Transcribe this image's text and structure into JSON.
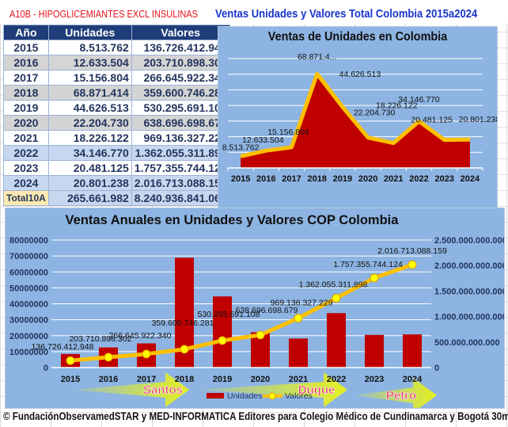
{
  "header": {
    "category_label": "A10B - HIPOGLICEMIANTES EXCL INSULINAS",
    "title": "Ventas Unidades y Valores Total Colombia 2015a2024"
  },
  "table": {
    "columns": [
      "Año",
      "Unidades",
      "Valores"
    ],
    "rows": [
      {
        "year": "2015",
        "units": "8.513.762",
        "values": "136.726.412.948"
      },
      {
        "year": "2016",
        "units": "12.633.504",
        "values": "203.710.898.302"
      },
      {
        "year": "2017",
        "units": "15.156.804",
        "values": "266.645.922.340"
      },
      {
        "year": "2018",
        "units": "68.871.414",
        "values": "359.600.746.281"
      },
      {
        "year": "2019",
        "units": "44.626.513",
        "values": "530.295.691.108"
      },
      {
        "year": "2020",
        "units": "22.204.730",
        "values": "638.696.698.679"
      },
      {
        "year": "2021",
        "units": "18.226.122",
        "values": "969.136.327.229"
      },
      {
        "year": "2022",
        "units": "34.146.770",
        "values": "1.362.055.311.898"
      },
      {
        "year": "2023",
        "units": "20.481.125",
        "values": "1.757.355.744.124"
      },
      {
        "year": "2024",
        "units": "20.801.238",
        "values": "2.016.713.088.159"
      }
    ],
    "total": {
      "label": "Total10A",
      "units": "265.661.982",
      "values": "8.240.936.841.068"
    }
  },
  "colors": {
    "panel_bg": "#8db4e2",
    "bar_red": "#c00000",
    "line_gold": "#ffc000",
    "marker_yellow": "#ffff00",
    "header_navy": "#1f3d7a",
    "arrow_yellow": "#e5f020",
    "president_label": "#e8306a"
  },
  "chart_data": [
    {
      "type": "area",
      "title": "Ventas de Unidades en Colombia",
      "categories": [
        "2015",
        "2016",
        "2017",
        "2018",
        "2019",
        "2020",
        "2021",
        "2022",
        "2023",
        "2024"
      ],
      "values": [
        8513762,
        12633504,
        15156804,
        68871414,
        44626513,
        22204730,
        18226122,
        34146770,
        20481125,
        20801238
      ],
      "data_labels": [
        "8.513.762",
        "12.633.504",
        "15.156.804",
        "68.871.4...",
        "44.626.513",
        "22.204.730",
        "18.226.122",
        "34.146.770",
        "20.481.125",
        "20.801.238"
      ],
      "ylim": [
        0,
        80000000
      ],
      "grid": true,
      "xlabel": "",
      "ylabel": ""
    },
    {
      "type": "bar",
      "title": "Ventas Anuales en Unidades y Valores COP Colombia",
      "categories": [
        "2015",
        "2016",
        "2017",
        "2018",
        "2019",
        "2020",
        "2021",
        "2022",
        "2023",
        "2024"
      ],
      "series": [
        {
          "name": "Unidades",
          "type": "bar",
          "axis": "left",
          "values": [
            8513762,
            12633504,
            15156804,
            68871414,
            44626513,
            22204730,
            18226122,
            34146770,
            20481125,
            20801238
          ]
        },
        {
          "name": "Valores",
          "type": "line",
          "axis": "right",
          "values": [
            136726412948,
            203710898302,
            266645922340,
            359600746281,
            530295691108,
            638696698679,
            969136327229,
            1362055311898,
            1757355744124,
            2016713088159
          ],
          "data_labels": [
            "136.726.412.948",
            "203.710.898.302",
            "266.645.922.340",
            "359.600.746.281",
            "530.295.691.108",
            "638.696.698.679",
            "969.136.327.229",
            "1.362.055.311.898",
            "1.757.355.744.124",
            "2.016.713.088.159"
          ]
        }
      ],
      "left_axis": {
        "ylim": [
          0,
          80000000
        ],
        "ticks": [
          "0",
          "10000000",
          "20000000",
          "30000000",
          "40000000",
          "50000000",
          "60000000",
          "70000000",
          "80000000"
        ]
      },
      "right_axis": {
        "ylim": [
          0,
          2500000000000
        ],
        "ticks": [
          "0",
          "500.000.000.000",
          "1.000.000.000.000",
          "1.500.000.000.000",
          "2.000.000.000.000",
          "2.500.000.000.000"
        ]
      },
      "legend": {
        "placement": "bottom",
        "entries": [
          "Unidades",
          "Valores"
        ]
      },
      "annotations": [
        {
          "label": "Santos",
          "from": "2015",
          "to": "2018"
        },
        {
          "label": "Duque",
          "from": "2019",
          "to": "2022"
        },
        {
          "label": "Petro",
          "from": "2023",
          "to": "2024"
        }
      ],
      "grid": true
    }
  ],
  "footer": "© FundaciónObservamedSTAR y MED-INFORMATICA Editores para Colegio Médico de Cundinamarca y Bogotá 30may25"
}
